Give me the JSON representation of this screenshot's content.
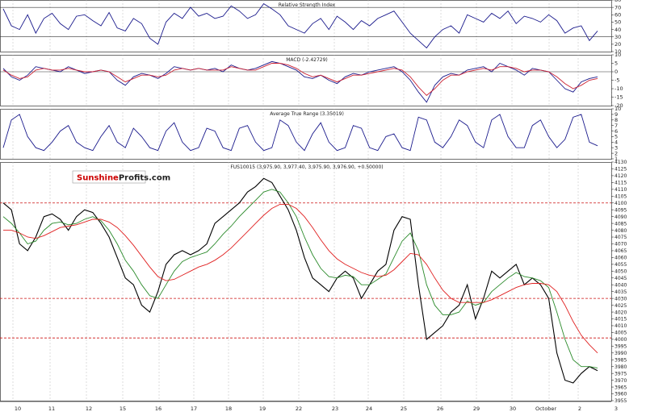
{
  "brand": {
    "part1": "Sunshine",
    "part2": "Profits.com"
  },
  "x_axis": {
    "date_labels": [
      "10",
      "11",
      "12",
      "15",
      "16",
      "17",
      "18",
      "19",
      "22",
      "23",
      "24",
      "25",
      "26",
      "29",
      "30",
      "October",
      "2",
      "3"
    ]
  },
  "chart_data": [
    {
      "type": "line",
      "title": "Relative Strength Index",
      "ylim": [
        10,
        80
      ],
      "yticks": [
        10,
        20,
        30,
        40,
        50,
        60,
        70,
        80
      ],
      "reference_lines": [
        30,
        70
      ],
      "grid": true,
      "x": [
        0,
        10,
        20,
        30,
        40,
        50,
        60,
        70,
        80,
        90,
        100,
        110,
        120,
        130,
        140,
        150,
        160,
        170,
        180,
        190,
        200,
        210,
        220,
        230,
        240,
        250,
        260,
        270,
        280,
        290,
        300,
        310,
        320,
        330,
        340,
        350,
        360,
        370,
        380,
        390,
        400,
        410,
        420,
        430,
        440,
        450,
        460,
        470,
        480,
        490,
        500,
        510,
        520,
        530,
        540,
        550,
        560,
        570,
        580,
        590,
        600,
        610,
        620,
        630,
        640,
        650,
        660,
        670,
        680,
        690,
        700,
        710,
        720,
        730
      ],
      "series": [
        {
          "color": "#1a1a8c",
          "values": [
            68,
            45,
            40,
            60,
            35,
            55,
            62,
            48,
            40,
            58,
            60,
            52,
            45,
            63,
            42,
            38,
            55,
            48,
            28,
            20,
            50,
            62,
            55,
            70,
            58,
            62,
            55,
            58,
            72,
            65,
            55,
            60,
            75,
            68,
            60,
            45,
            40,
            35,
            48,
            55,
            40,
            58,
            50,
            40,
            52,
            45,
            55,
            60,
            65,
            50,
            35,
            25,
            15,
            30,
            40,
            45,
            35,
            60,
            55,
            50,
            62,
            55,
            65,
            48,
            58,
            55,
            50,
            60,
            52,
            35,
            42,
            45,
            25,
            38
          ]
        }
      ]
    },
    {
      "type": "line",
      "title": "MACD (-2.42729)",
      "ylim": [
        -20,
        10
      ],
      "yticks": [
        -20,
        -15,
        -10,
        -5,
        0,
        5,
        10
      ],
      "reference_lines": [
        0
      ],
      "grid": true,
      "x": [
        0,
        10,
        20,
        30,
        40,
        50,
        60,
        70,
        80,
        90,
        100,
        110,
        120,
        130,
        140,
        150,
        160,
        170,
        180,
        190,
        200,
        210,
        220,
        230,
        240,
        250,
        260,
        270,
        280,
        290,
        300,
        310,
        320,
        330,
        340,
        350,
        360,
        370,
        380,
        390,
        400,
        410,
        420,
        430,
        440,
        450,
        460,
        470,
        480,
        490,
        500,
        510,
        520,
        530,
        540,
        550,
        560,
        570,
        580,
        590,
        600,
        610,
        620,
        630,
        640,
        650,
        660,
        670,
        680,
        690,
        700,
        710,
        720,
        730
      ],
      "series": [
        {
          "color": "#1a1a8c",
          "values": [
            2,
            -3,
            -5,
            -2,
            3,
            2,
            1,
            0,
            3,
            1,
            -1,
            0,
            1,
            0,
            -5,
            -8,
            -3,
            -1,
            -2,
            -4,
            -1,
            3,
            2,
            1,
            2,
            1,
            2,
            0,
            4,
            2,
            1,
            2,
            4,
            6,
            5,
            3,
            1,
            -3,
            -4,
            -2,
            -5,
            -7,
            -3,
            -1,
            -2,
            0,
            1,
            2,
            3,
            0,
            -5,
            -12,
            -18,
            -8,
            -3,
            -1,
            -2,
            1,
            2,
            3,
            0,
            5,
            3,
            1,
            -2,
            2,
            1,
            0,
            -5,
            -10,
            -12,
            -6,
            -4,
            -3
          ]
        },
        {
          "color": "#cc2233",
          "values": [
            1,
            -2,
            -4,
            -3,
            1,
            2,
            1,
            1,
            2,
            1,
            0,
            0,
            1,
            0,
            -3,
            -6,
            -4,
            -2,
            -2,
            -3,
            -2,
            1,
            2,
            1,
            2,
            1,
            1,
            1,
            3,
            2,
            1,
            1,
            3,
            5,
            5,
            4,
            2,
            -1,
            -3,
            -2,
            -4,
            -6,
            -4,
            -2,
            -2,
            -1,
            0,
            1,
            2,
            1,
            -3,
            -9,
            -14,
            -10,
            -5,
            -2,
            -2,
            0,
            1,
            2,
            1,
            3,
            3,
            2,
            0,
            1,
            1,
            0,
            -3,
            -7,
            -10,
            -8,
            -5,
            -4
          ]
        }
      ]
    },
    {
      "type": "line",
      "title": "Average True Range (3.35019)",
      "ylim": [
        1,
        10
      ],
      "yticks": [
        1,
        2,
        3,
        4,
        5,
        6,
        7,
        8,
        9,
        10
      ],
      "grid": true,
      "x": [
        0,
        10,
        20,
        30,
        40,
        50,
        60,
        70,
        80,
        90,
        100,
        110,
        120,
        130,
        140,
        150,
        160,
        170,
        180,
        190,
        200,
        210,
        220,
        230,
        240,
        250,
        260,
        270,
        280,
        290,
        300,
        310,
        320,
        330,
        340,
        350,
        360,
        370,
        380,
        390,
        400,
        410,
        420,
        430,
        440,
        450,
        460,
        470,
        480,
        490,
        500,
        510,
        520,
        530,
        540,
        550,
        560,
        570,
        580,
        590,
        600,
        610,
        620,
        630,
        640,
        650,
        660,
        670,
        680,
        690,
        700,
        710,
        720,
        730
      ],
      "series": [
        {
          "color": "#1a1a8c",
          "values": [
            3,
            8,
            9,
            5,
            3,
            2.5,
            4,
            6,
            7,
            4,
            3,
            2.5,
            5,
            7,
            4,
            3,
            6.5,
            5,
            3,
            2.5,
            6,
            7.5,
            4,
            2.5,
            3,
            6.5,
            6,
            3,
            2.5,
            6.5,
            7,
            4,
            2.5,
            3,
            8,
            7,
            4,
            2.5,
            5.5,
            7.5,
            4,
            2.5,
            3,
            7,
            6.5,
            3,
            2.5,
            5,
            5.5,
            3,
            2.5,
            8.5,
            8,
            4,
            3,
            5,
            8,
            7,
            4,
            3,
            8,
            9,
            5,
            3,
            3,
            7,
            8,
            5,
            3,
            4.5,
            8.5,
            9,
            4,
            3.35
          ]
        }
      ]
    },
    {
      "type": "line",
      "title": "FUS10015 (3,975.90, 3,977.40, 3,975.90, 3,976.90, +0.50000)",
      "ylim": [
        3955,
        4130
      ],
      "ytick_step": 5,
      "reference_lines": [
        4030,
        4100,
        4001
      ],
      "grid": true,
      "x": [
        0,
        10,
        20,
        30,
        40,
        50,
        60,
        70,
        80,
        90,
        100,
        110,
        120,
        130,
        140,
        150,
        160,
        170,
        180,
        190,
        200,
        210,
        220,
        230,
        240,
        250,
        260,
        270,
        280,
        290,
        300,
        310,
        320,
        330,
        340,
        350,
        360,
        370,
        380,
        390,
        400,
        410,
        420,
        430,
        440,
        450,
        460,
        470,
        480,
        490,
        500,
        510,
        520,
        530,
        540,
        550,
        560,
        570,
        580,
        590,
        600,
        610,
        620,
        630,
        640,
        650,
        660,
        670,
        680,
        690,
        700,
        710,
        720,
        730
      ],
      "series": [
        {
          "color": "#000000",
          "values": [
            4100,
            4095,
            4070,
            4065,
            4075,
            4090,
            4092,
            4088,
            4080,
            4090,
            4095,
            4093,
            4085,
            4075,
            4060,
            4045,
            4040,
            4025,
            4020,
            4035,
            4055,
            4062,
            4065,
            4062,
            4065,
            4070,
            4085,
            4090,
            4095,
            4100,
            4108,
            4112,
            4118,
            4115,
            4105,
            4095,
            4080,
            4060,
            4045,
            4040,
            4035,
            4045,
            4050,
            4045,
            4030,
            4040,
            4050,
            4055,
            4080,
            4090,
            4088,
            4040,
            4000,
            4005,
            4010,
            4020,
            4025,
            4040,
            4015,
            4030,
            4050,
            4045,
            4050,
            4055,
            4040,
            4045,
            4040,
            4030,
            3990,
            3970,
            3968,
            3975,
            3980,
            3977
          ]
        },
        {
          "color": "#2a8a2a",
          "values": [
            4090,
            4085,
            4078,
            4070,
            4072,
            4080,
            4085,
            4086,
            4084,
            4085,
            4088,
            4090,
            4087,
            4080,
            4070,
            4058,
            4050,
            4040,
            4032,
            4030,
            4040,
            4050,
            4057,
            4060,
            4062,
            4064,
            4070,
            4077,
            4083,
            4090,
            4096,
            4102,
            4108,
            4110,
            4108,
            4100,
            4090,
            4075,
            4062,
            4052,
            4046,
            4045,
            4047,
            4046,
            4040,
            4040,
            4044,
            4048,
            4060,
            4072,
            4078,
            4065,
            4040,
            4025,
            4018,
            4018,
            4020,
            4028,
            4025,
            4027,
            4035,
            4040,
            4045,
            4049,
            4046,
            4045,
            4043,
            4038,
            4020,
            4000,
            3985,
            3980,
            3980,
            3979
          ]
        },
        {
          "color": "#e02020",
          "values": [
            4080,
            4080,
            4078,
            4075,
            4074,
            4076,
            4079,
            4082,
            4083,
            4084,
            4086,
            4088,
            4088,
            4086,
            4082,
            4076,
            4069,
            4061,
            4053,
            4046,
            4043,
            4044,
            4047,
            4050,
            4053,
            4055,
            4058,
            4062,
            4067,
            4073,
            4079,
            4085,
            4091,
            4096,
            4099,
            4099,
            4096,
            4090,
            4082,
            4073,
            4065,
            4059,
            4055,
            4052,
            4049,
            4047,
            4046,
            4047,
            4051,
            4057,
            4063,
            4062,
            4055,
            4045,
            4036,
            4030,
            4027,
            4027,
            4027,
            4027,
            4029,
            4032,
            4035,
            4038,
            4040,
            4041,
            4041,
            4040,
            4035,
            4025,
            4013,
            4003,
            3996,
            3990
          ]
        }
      ]
    }
  ]
}
